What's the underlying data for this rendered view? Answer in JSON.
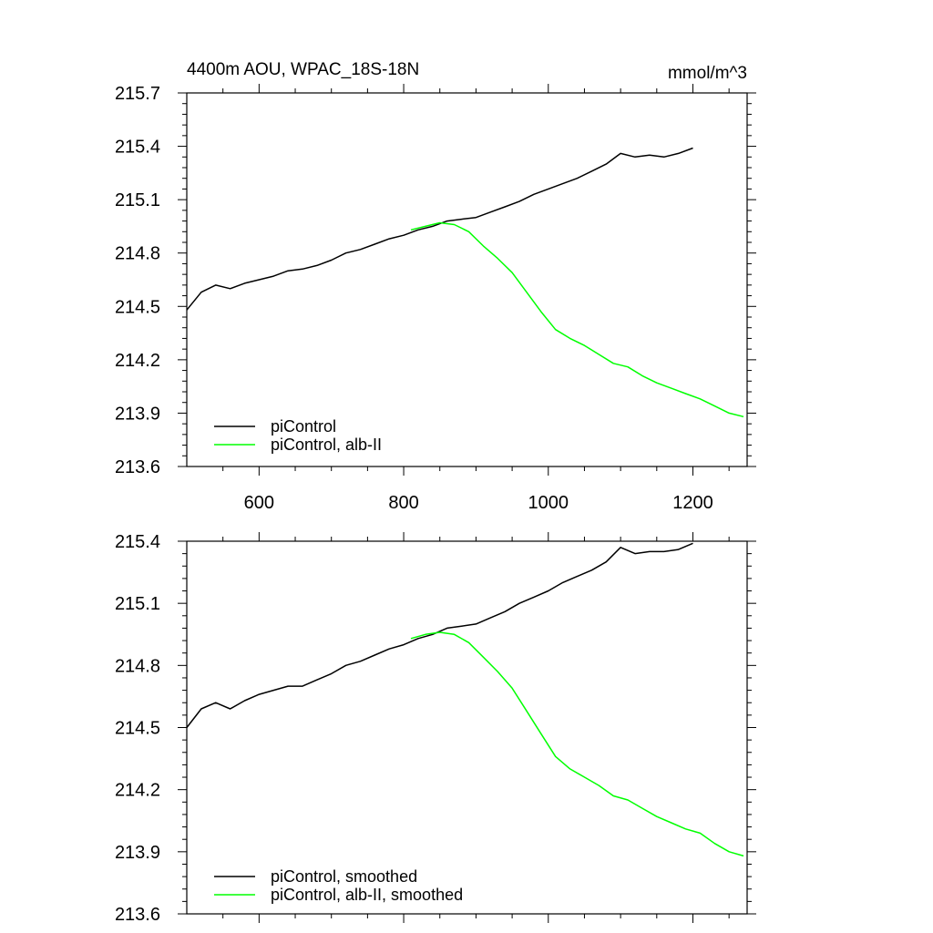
{
  "chart_data": [
    {
      "type": "line",
      "title": "4400m AOU, WPAC_18S-18N",
      "units": "mmol/m^3",
      "xlabel": "",
      "ylabel": "",
      "xlim": [
        500,
        1275
      ],
      "ylim": [
        213.6,
        215.7
      ],
      "x_ticks": [
        600,
        800,
        1000,
        1200
      ],
      "x_tick_labels": [
        "600",
        "800",
        "1000",
        "1200"
      ],
      "y_ticks": [
        213.6,
        213.9,
        214.2,
        214.5,
        214.8,
        215.1,
        215.4,
        215.7
      ],
      "y_tick_labels": [
        "213.6",
        "213.9",
        "214.2",
        "214.5",
        "214.8",
        "215.1",
        "215.4",
        "215.7"
      ],
      "legend_position": "bottom-left",
      "series": [
        {
          "name": "piControl",
          "color": "#000000",
          "x": [
            500,
            520,
            540,
            560,
            580,
            600,
            620,
            640,
            660,
            680,
            700,
            720,
            740,
            760,
            780,
            800,
            820,
            840,
            860,
            880,
            900,
            920,
            940,
            960,
            980,
            1000,
            1020,
            1040,
            1060,
            1080,
            1100,
            1120,
            1140,
            1160,
            1180,
            1200
          ],
          "y": [
            214.48,
            214.58,
            214.62,
            214.6,
            214.63,
            214.65,
            214.67,
            214.7,
            214.71,
            214.73,
            214.76,
            214.8,
            214.82,
            214.85,
            214.88,
            214.9,
            214.93,
            214.95,
            214.98,
            214.99,
            215.0,
            215.03,
            215.06,
            215.09,
            215.13,
            215.16,
            215.19,
            215.22,
            215.26,
            215.3,
            215.36,
            215.34,
            215.35,
            215.34,
            215.36,
            215.39
          ]
        },
        {
          "name": "piControl, alb-II",
          "color": "#00ff00",
          "x": [
            810,
            830,
            850,
            870,
            890,
            910,
            930,
            950,
            970,
            990,
            1010,
            1030,
            1050,
            1070,
            1090,
            1110,
            1130,
            1150,
            1170,
            1190,
            1210,
            1230,
            1250,
            1270
          ],
          "y": [
            214.93,
            214.95,
            214.97,
            214.96,
            214.92,
            214.84,
            214.77,
            214.69,
            214.58,
            214.47,
            214.37,
            214.32,
            214.28,
            214.23,
            214.18,
            214.16,
            214.11,
            214.07,
            214.04,
            214.01,
            213.98,
            213.94,
            213.9,
            213.88
          ]
        }
      ]
    },
    {
      "type": "line",
      "title": "",
      "xlabel": "",
      "ylabel": "",
      "xlim": [
        500,
        1275
      ],
      "ylim": [
        213.6,
        215.4
      ],
      "x_ticks": [
        600,
        800,
        1000,
        1200
      ],
      "x_tick_labels": [],
      "y_ticks": [
        213.6,
        213.9,
        214.2,
        214.5,
        214.8,
        215.1,
        215.4
      ],
      "y_tick_labels": [
        "213.6",
        "213.9",
        "214.2",
        "214.5",
        "214.8",
        "215.1",
        "215.4"
      ],
      "legend_position": "bottom-left",
      "series": [
        {
          "name": "piControl, smoothed",
          "color": "#000000",
          "x": [
            500,
            520,
            540,
            560,
            580,
            600,
            620,
            640,
            660,
            680,
            700,
            720,
            740,
            760,
            780,
            800,
            820,
            840,
            860,
            880,
            900,
            920,
            940,
            960,
            980,
            1000,
            1020,
            1040,
            1060,
            1080,
            1100,
            1120,
            1140,
            1160,
            1180,
            1200
          ],
          "y": [
            214.5,
            214.59,
            214.62,
            214.59,
            214.63,
            214.66,
            214.68,
            214.7,
            214.7,
            214.73,
            214.76,
            214.8,
            214.82,
            214.85,
            214.88,
            214.9,
            214.93,
            214.95,
            214.98,
            214.99,
            215.0,
            215.03,
            215.06,
            215.1,
            215.13,
            215.16,
            215.2,
            215.23,
            215.26,
            215.3,
            215.37,
            215.34,
            215.35,
            215.35,
            215.36,
            215.39
          ]
        },
        {
          "name": "piControl, alb-II, smoothed",
          "color": "#00ff00",
          "x": [
            810,
            830,
            850,
            870,
            890,
            910,
            930,
            950,
            970,
            990,
            1010,
            1030,
            1050,
            1070,
            1090,
            1110,
            1130,
            1150,
            1170,
            1190,
            1210,
            1230,
            1250,
            1270
          ],
          "y": [
            214.93,
            214.95,
            214.96,
            214.95,
            214.91,
            214.84,
            214.77,
            214.69,
            214.58,
            214.47,
            214.36,
            214.3,
            214.26,
            214.22,
            214.17,
            214.15,
            214.11,
            214.07,
            214.04,
            214.01,
            213.99,
            213.94,
            213.9,
            213.88
          ]
        }
      ]
    }
  ]
}
